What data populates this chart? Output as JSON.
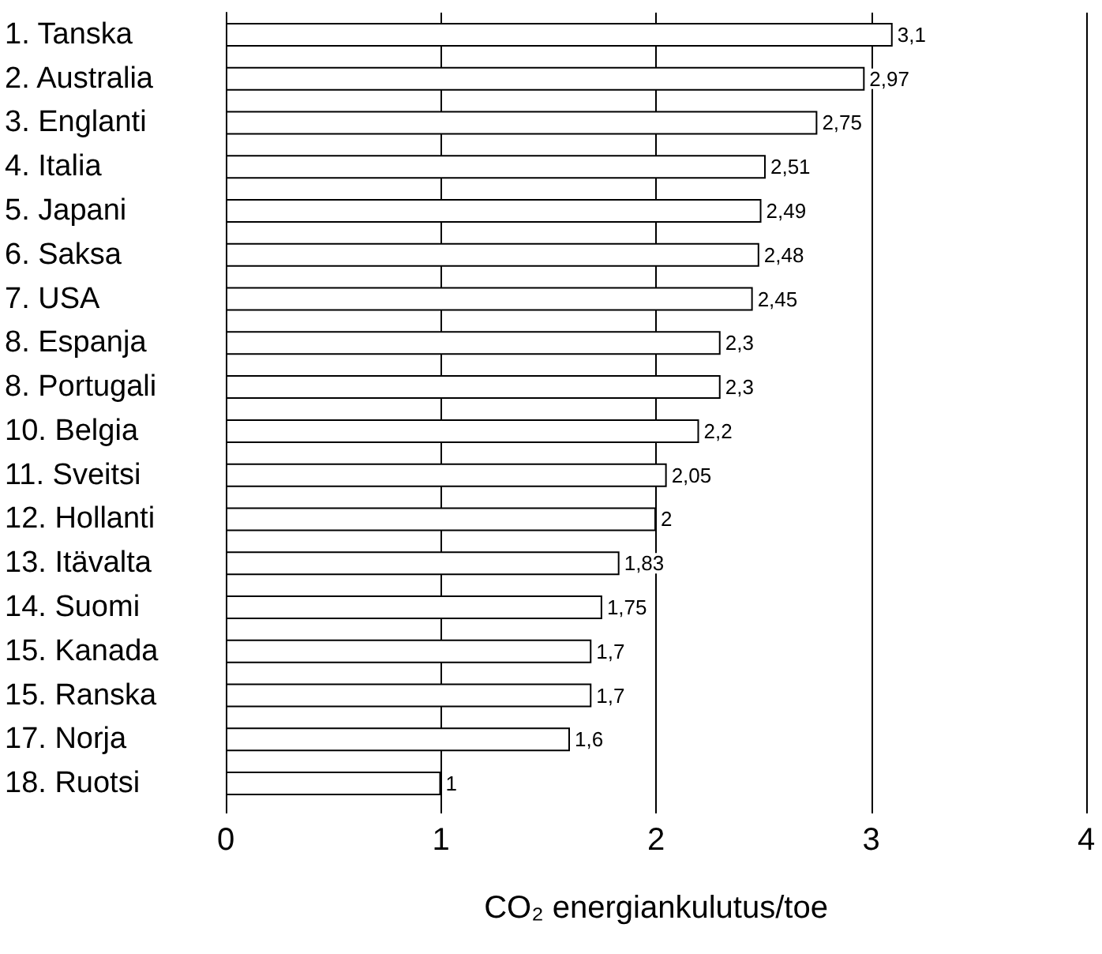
{
  "chart_data": {
    "type": "bar",
    "orientation": "horizontal",
    "xlabel": "CO₂ energiankulutus/toe",
    "categories": [
      "1. Tanska",
      "2. Australia",
      "3. Englanti",
      "4. Italia",
      "5. Japani",
      "6. Saksa",
      "7. USA",
      "8. Espanja",
      "8. Portugali",
      "10. Belgia",
      "11. Sveitsi",
      "12. Hollanti",
      "13. Itävalta",
      "14. Suomi",
      "15. Kanada",
      "15. Ranska",
      "17. Norja",
      "18. Ruotsi"
    ],
    "values": [
      3.1,
      2.97,
      2.75,
      2.51,
      2.49,
      2.48,
      2.45,
      2.3,
      2.3,
      2.2,
      2.05,
      2,
      1.83,
      1.75,
      1.7,
      1.7,
      1.6,
      1
    ],
    "value_labels": [
      "3,1",
      "2,97",
      "2,75",
      "2,51",
      "2,49",
      "2,48",
      "2,45",
      "2,3",
      "2,3",
      "2,2",
      "2,05",
      "2",
      "1,83",
      "1,75",
      "1,7",
      "1,7",
      "1,6",
      "1"
    ],
    "color": "#ffffff",
    "xlim": [
      0,
      4
    ],
    "xticks": [
      0,
      1,
      2,
      3,
      4
    ],
    "grid": "x"
  }
}
